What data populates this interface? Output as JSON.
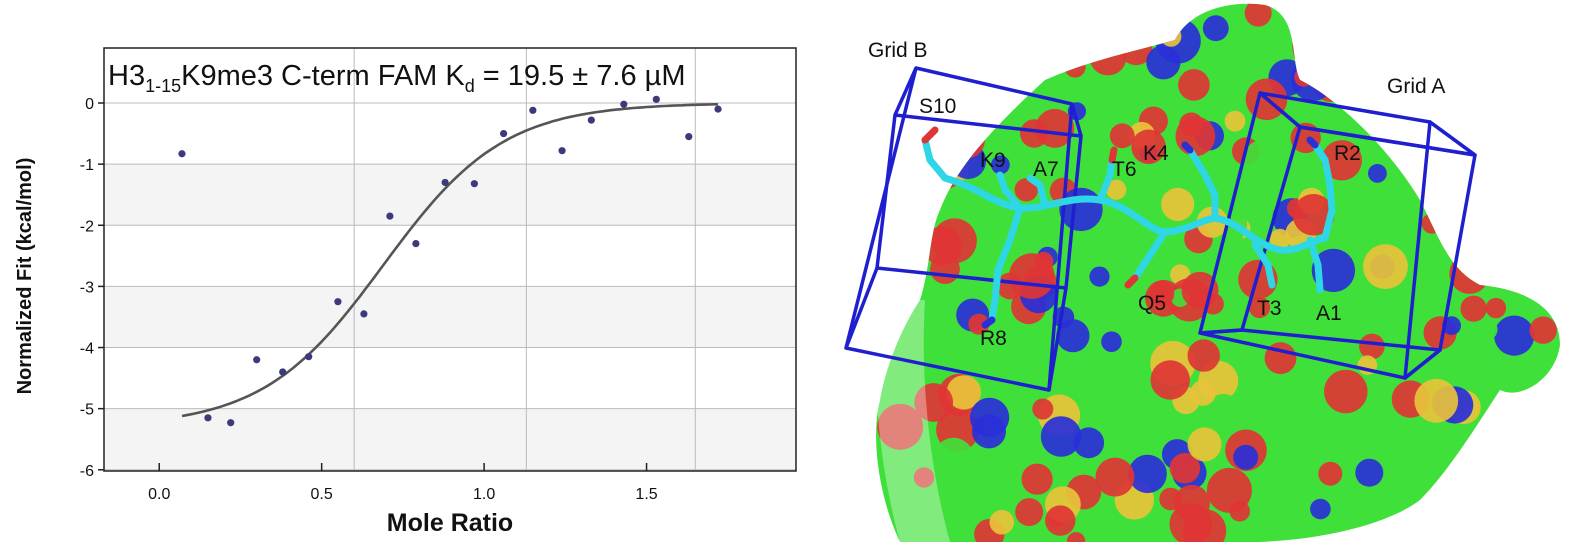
{
  "chart_data": {
    "type": "scatter",
    "title": {
      "main": "H3",
      "sub1": "1-15",
      "mid": "K9me3 C-term FAM K",
      "sub2": "d",
      "tail": " = 19.5 ± 7.6 µM"
    },
    "xlabel": "Mole Ratio",
    "ylabel": "Normalized Fit (kcal/mol)",
    "xlim": [
      -0.17,
      1.96
    ],
    "ylim": [
      -6.02,
      0.9
    ],
    "xticks": [
      {
        "v": 0.0,
        "label": "0.0"
      },
      {
        "v": 0.5,
        "label": "0.5"
      },
      {
        "v": 1.0,
        "label": "1.0"
      },
      {
        "v": 1.5,
        "label": "1.5"
      }
    ],
    "yticks": [
      {
        "v": 0,
        "label": "0"
      },
      {
        "v": -1,
        "label": "-1"
      },
      {
        "v": -2,
        "label": "-2"
      },
      {
        "v": -3,
        "label": "-3"
      },
      {
        "v": -4,
        "label": "-4"
      },
      {
        "v": -5,
        "label": "-5"
      },
      {
        "v": -6,
        "label": "-6"
      }
    ],
    "xgrid": [
      0.6,
      1.13,
      1.65
    ],
    "points": [
      {
        "x": 0.07,
        "y": -0.83
      },
      {
        "x": 0.15,
        "y": -5.15
      },
      {
        "x": 0.22,
        "y": -5.23
      },
      {
        "x": 0.3,
        "y": -4.2
      },
      {
        "x": 0.38,
        "y": -4.4
      },
      {
        "x": 0.46,
        "y": -4.15
      },
      {
        "x": 0.55,
        "y": -3.25
      },
      {
        "x": 0.63,
        "y": -3.45
      },
      {
        "x": 0.71,
        "y": -1.85
      },
      {
        "x": 0.79,
        "y": -2.3
      },
      {
        "x": 0.88,
        "y": -1.3
      },
      {
        "x": 0.97,
        "y": -1.32
      },
      {
        "x": 1.06,
        "y": -0.5
      },
      {
        "x": 1.15,
        "y": -0.12
      },
      {
        "x": 1.24,
        "y": -0.78
      },
      {
        "x": 1.33,
        "y": -0.28
      },
      {
        "x": 1.43,
        "y": -0.02
      },
      {
        "x": 1.53,
        "y": 0.06
      },
      {
        "x": 1.63,
        "y": -0.55
      },
      {
        "x": 1.72,
        "y": -0.1
      }
    ],
    "fit": {
      "x0": 0.07,
      "x1": 1.72,
      "ymin": -5.3,
      "mid": 0.69,
      "k": 5.4
    },
    "colors": {
      "point": "#3b3a7a",
      "fit": "#555555",
      "band": "#f4f4f4",
      "grid": "#bbbbbb"
    }
  },
  "structure": {
    "grid_a_label": "Grid A",
    "grid_b_label": "Grid B",
    "residues": [
      "A1",
      "R2",
      "T3",
      "K4",
      "Q5",
      "T6",
      "A7",
      "R8",
      "K9",
      "S10"
    ],
    "colors": {
      "carbon": "#3fe03a",
      "oxygen": "#e03535",
      "nitrogen": "#2a2fd8",
      "sulfur": "#e8c23a",
      "peptide": "#2fd6e6",
      "grid": "#1f1fd0"
    }
  }
}
